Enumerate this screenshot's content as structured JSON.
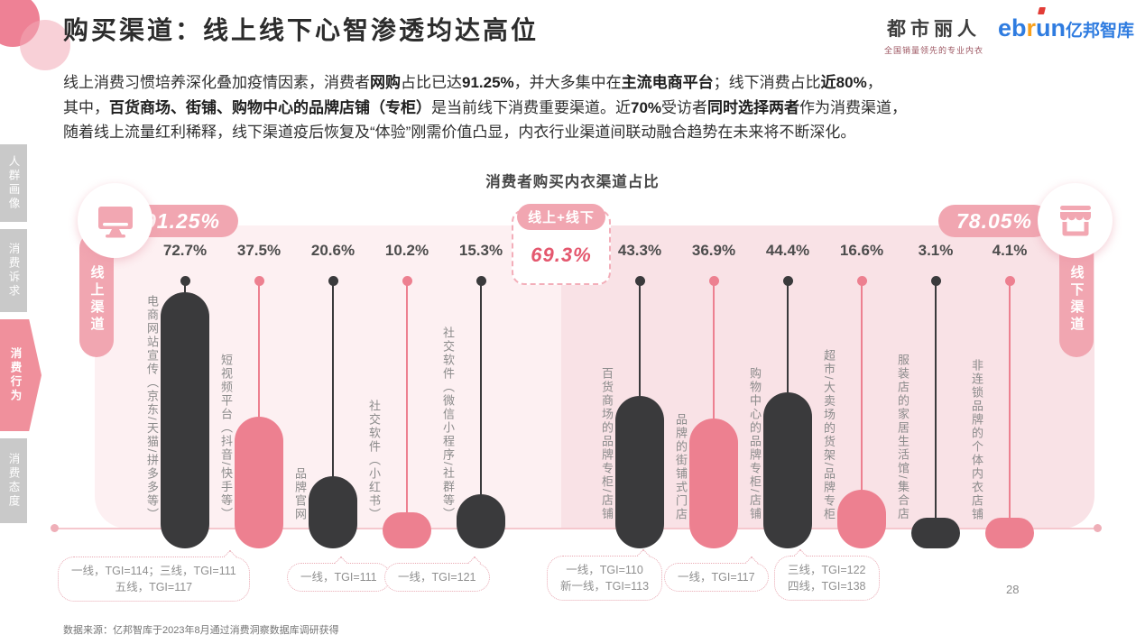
{
  "header": {
    "title": "购买渠道：线上线下心智渗透均达高位",
    "logo_cosmo": {
      "name": "都市丽人",
      "tagline": "全国销量领先的专业内衣"
    },
    "logo_ebrun": {
      "en_1": "eb",
      "en_r": "r",
      "en_2": "un",
      "cn": "亿邦智库"
    }
  },
  "intro": {
    "lines": [
      [
        {
          "t": "线上消费习惯培养深化叠加疫情因素，消费者",
          "b": false
        },
        {
          "t": "网购",
          "b": true
        },
        {
          "t": "占比已达",
          "b": false
        },
        {
          "t": "91.25%",
          "b": true
        },
        {
          "t": "，并大多集中在",
          "b": false
        },
        {
          "t": "主流电商平台",
          "b": true
        },
        {
          "t": "；线下消费占比",
          "b": false
        },
        {
          "t": "近80%",
          "b": true
        },
        {
          "t": "，",
          "b": false
        }
      ],
      [
        {
          "t": "其中，",
          "b": false
        },
        {
          "t": "百货商场、街铺、购物中心的品牌店铺（专柜）",
          "b": true
        },
        {
          "t": "是当前线下消费重要渠道。近",
          "b": false
        },
        {
          "t": "70%",
          "b": true
        },
        {
          "t": "受访者",
          "b": false
        },
        {
          "t": "同时选择两者",
          "b": true
        },
        {
          "t": "作为消费渠道，",
          "b": false
        }
      ],
      [
        {
          "t": "随着线上流量红利稀释，线下渠道疫后恢复及“体验”刚需价值凸显，内衣行业渠道间联动融合趋势在未来将不断深化。",
          "b": false
        }
      ]
    ]
  },
  "sidebar": {
    "items": [
      {
        "label": "人群画像",
        "active": false
      },
      {
        "label": "消费诉求",
        "active": false
      },
      {
        "label": "消费行为",
        "active": true
      },
      {
        "label": "消费态度",
        "active": false
      }
    ]
  },
  "chart_data": {
    "type": "bar",
    "title": "消费者购买内衣渠道占比",
    "value_unit": "%",
    "groups": [
      {
        "name": "线上渠道",
        "total": "91.25%",
        "icon": "monitor-icon",
        "bars": [
          {
            "label": "电商网站宣传（京东/天猫/拼多多等）",
            "value": 72.7,
            "color": "dark"
          },
          {
            "label": "短视频平台（抖音/快手等）",
            "value": 37.5,
            "color": "pink"
          },
          {
            "label": "品牌官网",
            "value": 20.6,
            "color": "dark"
          },
          {
            "label": "社交软件（小红书）",
            "value": 10.2,
            "color": "pink"
          },
          {
            "label": "社交软件（微信小程序/社群等）",
            "value": 15.3,
            "color": "dark"
          }
        ]
      },
      {
        "name": "线下渠道",
        "total": "78.05%",
        "icon": "storefront-icon",
        "bars": [
          {
            "label": "百货商场的品牌专柜/店铺",
            "value": 43.3,
            "color": "dark"
          },
          {
            "label": "品牌的街铺式门店",
            "value": 36.9,
            "color": "pink"
          },
          {
            "label": "购物中心的品牌专柜/店铺",
            "value": 44.4,
            "color": "dark"
          },
          {
            "label": "超市/大卖场的货架/品牌专柜",
            "value": 16.6,
            "color": "pink"
          },
          {
            "label": "服装店的家居生活馆/集合店",
            "value": 3.1,
            "color": "dark"
          },
          {
            "label": "非连锁品牌的个体内衣店铺",
            "value": 4.1,
            "color": "pink"
          }
        ]
      }
    ],
    "combined": {
      "label": "线上+线下",
      "value": "69.3%"
    },
    "annotations": [
      {
        "lines": [
          "一线，TGI=114；三线，TGI=111",
          "五线，TGI=117"
        ]
      },
      {
        "lines": [
          "一线，TGI=111"
        ]
      },
      {
        "lines": [
          "一线，TGI=121"
        ]
      },
      {
        "lines": [
          "一线，TGI=110",
          "新一线，TGI=113"
        ]
      },
      {
        "lines": [
          "一线，TGI=117"
        ]
      },
      {
        "lines": [
          "三线，TGI=122",
          "四线，TGI=138"
        ]
      }
    ]
  },
  "footer": {
    "source": "数据来源：亿邦智库于2023年8月通过消费洞察数据库调研获得",
    "page_number": "28"
  },
  "colors": {
    "accent_pink": "#f1a6b1",
    "bar_dark": "#3a3a3c",
    "bar_pink": "#ed8090",
    "highlight_red": "#e4576e",
    "panel_left": "#fdf0f2",
    "panel_right": "#f9e2e6",
    "sidebar_active": "#f0909c",
    "ebrun_blue": "#2f7ce0",
    "ebrun_orange": "#f9a01b"
  }
}
